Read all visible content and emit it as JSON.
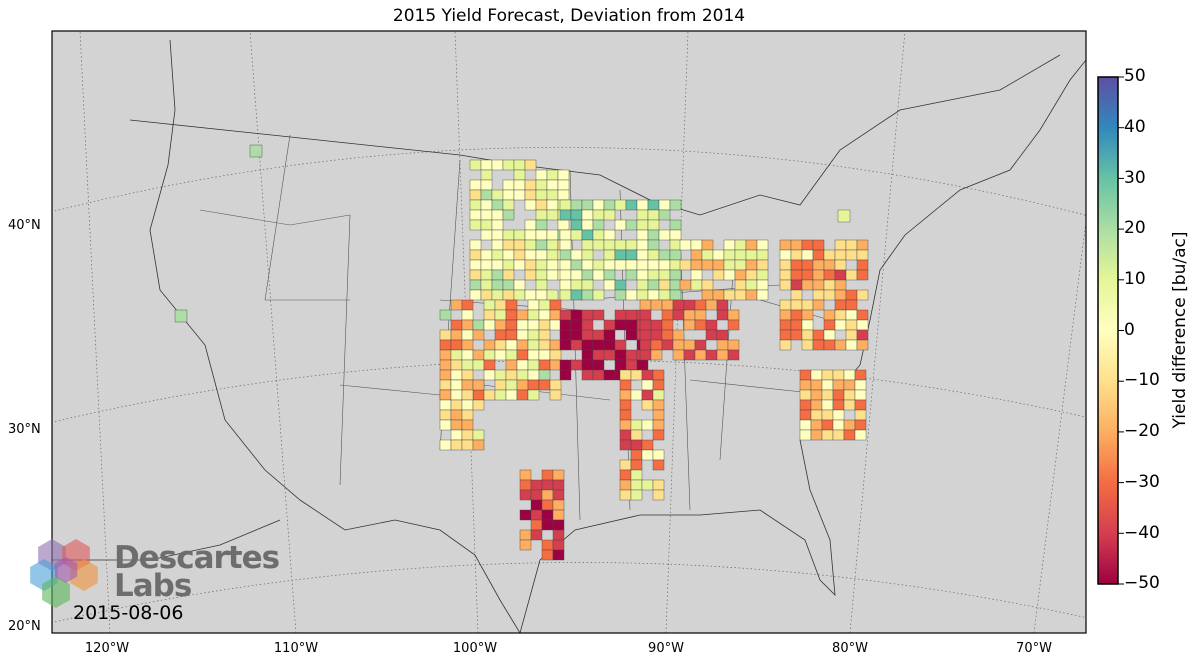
{
  "title": "2015 Yield Forecast, Deviation from 2014",
  "map": {
    "background_color": "#d3d3d3",
    "latitude_labels": [
      "40°N",
      "30°N",
      "20°N"
    ],
    "longitude_labels": [
      "120°W",
      "110°W",
      "100°W",
      "90°W",
      "80°W",
      "70°W"
    ]
  },
  "colorbar": {
    "label": "Yield difference [bu/ac]",
    "ticks": [
      "50",
      "40",
      "30",
      "20",
      "10",
      "0",
      "−10",
      "−20",
      "−30",
      "−40",
      "−50"
    ],
    "min": -50,
    "max": 50,
    "colormap": "Spectral",
    "stops": [
      "#9e0142",
      "#d53e4f",
      "#f46d43",
      "#fdae61",
      "#fee08b",
      "#ffffbf",
      "#e6f598",
      "#abdda4",
      "#66c2a5",
      "#3288bd",
      "#5e4fa2"
    ]
  },
  "logo": {
    "name_line1": "Descartes",
    "name_line2": "Labs",
    "colors": [
      "#8e6fb0",
      "#e05a5a",
      "#4aa0d8",
      "#f0953a",
      "#5bb55b",
      "#a05ab0"
    ]
  },
  "date": "2015-08-06"
}
